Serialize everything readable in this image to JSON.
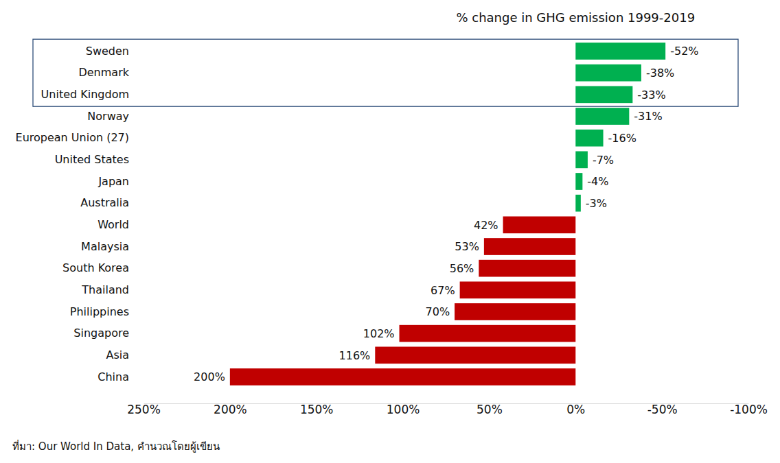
{
  "chart_data": {
    "type": "bar",
    "orientation": "horizontal",
    "title": "% change in GHG emission 1999-2019",
    "source": "ที่มา: Our World In Data, คำนวณโดยผู้เขียน",
    "categories": [
      "Sweden",
      "Denmark",
      "United Kingdom",
      "Norway",
      "European Union (27)",
      "United States",
      "Japan",
      "Australia",
      "World",
      "Malaysia",
      "South Korea",
      "Thailand",
      "Philippines",
      "Singapore",
      "Asia",
      "China"
    ],
    "values": [
      -52,
      -38,
      -33,
      -31,
      -16,
      -7,
      -4,
      -3,
      42,
      53,
      56,
      67,
      70,
      102,
      116,
      200
    ],
    "value_labels": [
      "-52%",
      "-38%",
      "-33%",
      "-31%",
      "-16%",
      "-7%",
      "-4%",
      "-3%",
      "42%",
      "53%",
      "56%",
      "67%",
      "70%",
      "102%",
      "116%",
      "200%"
    ],
    "colors": [
      "#00b050",
      "#00b050",
      "#00b050",
      "#00b050",
      "#00b050",
      "#00b050",
      "#00b050",
      "#00b050",
      "#c00000",
      "#c00000",
      "#c00000",
      "#c00000",
      "#c00000",
      "#c00000",
      "#c00000",
      "#c00000"
    ],
    "data_labels": true,
    "grid": false,
    "xlim": [
      250,
      -100
    ],
    "xticks": [
      {
        "value": 250,
        "label": "250%"
      },
      {
        "value": 200,
        "label": "200%"
      },
      {
        "value": 150,
        "label": "150%"
      },
      {
        "value": 100,
        "label": "100%"
      },
      {
        "value": 50,
        "label": "50%"
      },
      {
        "value": 0,
        "label": "0%"
      },
      {
        "value": -50,
        "label": "-50%"
      },
      {
        "value": -100,
        "label": "-100%"
      }
    ]
  }
}
